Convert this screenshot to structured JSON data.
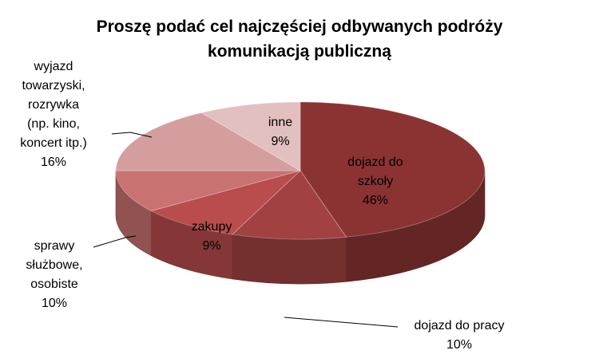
{
  "chart_data": {
    "type": "pie",
    "title_lines": [
      "Proszę podać cel najczęściej odbywanych podróży",
      "komunikacją publiczną"
    ],
    "categories": [
      "dojazd do szkoły",
      "dojazd do pracy",
      "zakupy",
      "sprawy służbowe, osobiste",
      "wyjazd towarzyski, rozrywka (np. kino, koncert itp.)",
      "inne"
    ],
    "values": [
      46,
      10,
      9,
      10,
      16,
      9
    ],
    "value_labels": [
      "46%",
      "10%",
      "9%",
      "10%",
      "16%",
      "9%"
    ],
    "colors": [
      "#8B3333",
      "#A14141",
      "#B94C4C",
      "#C97272",
      "#D59E9E",
      "#E2C0C0"
    ],
    "style": "3d-pie",
    "labels": [
      {
        "lines": [
          "dojazd do",
          "szkoły",
          "46%"
        ]
      },
      {
        "lines": [
          "dojazd do pracy",
          "10%"
        ]
      },
      {
        "lines": [
          "zakupy",
          "9%"
        ]
      },
      {
        "lines": [
          "sprawy",
          "służbowe,",
          "osobiste",
          "10%"
        ]
      },
      {
        "lines": [
          "wyjazd",
          "towarzyski,",
          "rozrywka",
          "(np. kino,",
          "koncert itp.)",
          "16%"
        ]
      },
      {
        "lines": [
          "inne",
          "9%"
        ]
      }
    ]
  }
}
